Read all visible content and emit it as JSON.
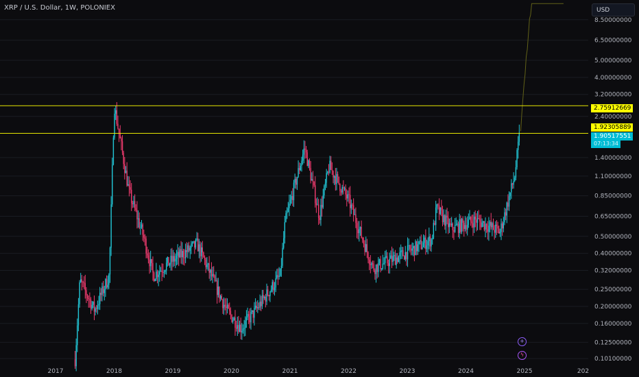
{
  "header": {
    "title": "XRP / U.S. Dollar, 1W, POLONIEX"
  },
  "toolbar": {
    "currency": "USD"
  },
  "price_labels": {
    "level_high": "2.75912669",
    "level_low": "1.92305889",
    "current_price": "1.90517551",
    "countdown": "07:13:34"
  },
  "icons": {
    "plus": "plus-circle-icon",
    "bolt": "lightning-circle-icon"
  },
  "colors": {
    "background": "#0c0c0f",
    "up_candle": "#26a69a",
    "up_candle_bright": "#22c6d6",
    "down_candle": "#ef3b6e",
    "horizontal_line": "#ffff00",
    "current_price_label": "#00bcd4",
    "grid": "#1a1c23",
    "projection": "#6b6b1a"
  },
  "chart_data": {
    "type": "candlestick",
    "title": "XRP / U.S. Dollar, 1W, POLONIEX",
    "y_scale": "log",
    "ylim": [
      0.095,
      11.0
    ],
    "y_ticks": [
      "8.50000000",
      "6.50000000",
      "5.00000000",
      "4.00000000",
      "3.20000000",
      "2.40000000",
      "1.40000000",
      "1.10000000",
      "0.85000000",
      "0.65000000",
      "0.50000000",
      "0.40000000",
      "0.32000000",
      "0.25000000",
      "0.20000000",
      "0.16000000",
      "0.12500000",
      "0.10100000"
    ],
    "x_ticks": [
      "2017",
      "2018",
      "2019",
      "2020",
      "2021",
      "2022",
      "2023",
      "2024",
      "2025",
      "202"
    ],
    "horizontal_levels": [
      2.75912669,
      1.92305889
    ],
    "current_price": 1.90517551,
    "grid": true,
    "key_points": [
      {
        "date": "2017-05",
        "close": 0.1
      },
      {
        "date": "2017-06",
        "close": 0.28
      },
      {
        "date": "2017-09",
        "close": 0.19
      },
      {
        "date": "2017-12",
        "close": 0.3
      },
      {
        "date": "2018-01",
        "close": 2.8
      },
      {
        "date": "2018-04",
        "close": 0.9
      },
      {
        "date": "2018-07",
        "close": 0.5
      },
      {
        "date": "2018-09",
        "close": 0.3
      },
      {
        "date": "2018-12",
        "close": 0.35
      },
      {
        "date": "2019-06",
        "close": 0.45
      },
      {
        "date": "2019-12",
        "close": 0.19
      },
      {
        "date": "2020-03",
        "close": 0.15
      },
      {
        "date": "2020-06",
        "close": 0.19
      },
      {
        "date": "2020-11",
        "close": 0.3
      },
      {
        "date": "2020-12",
        "close": 0.6
      },
      {
        "date": "2021-04",
        "close": 1.6
      },
      {
        "date": "2021-07",
        "close": 0.65
      },
      {
        "date": "2021-09",
        "close": 1.25
      },
      {
        "date": "2022-01",
        "close": 0.8
      },
      {
        "date": "2022-06",
        "close": 0.33
      },
      {
        "date": "2022-11",
        "close": 0.38
      },
      {
        "date": "2023-06",
        "close": 0.48
      },
      {
        "date": "2023-07",
        "close": 0.72
      },
      {
        "date": "2023-10",
        "close": 0.55
      },
      {
        "date": "2024-03",
        "close": 0.62
      },
      {
        "date": "2024-08",
        "close": 0.53
      },
      {
        "date": "2024-11",
        "close": 1.1
      },
      {
        "date": "2024-12",
        "close": 1.905
      }
    ]
  }
}
